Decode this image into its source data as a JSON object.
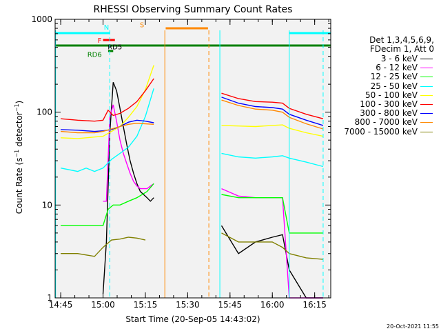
{
  "chart_data": {
    "type": "line",
    "title": "RHESSI Observing Summary Count Rates",
    "xlabel": "Start Time (20-Sep-05 14:43:02)",
    "ylabel": "Count Rate (s^-1 detector^-1)",
    "yscale": "log",
    "xlim": [
      14.717,
      16.345
    ],
    "ylim": [
      1,
      1000
    ],
    "x_ticks": [
      14.75,
      15.0,
      15.25,
      15.5,
      15.75,
      16.0,
      16.25
    ],
    "x_tick_labels": [
      "14:45",
      "15:00",
      "15:15",
      "15:30",
      "15:45",
      "16:00",
      "16:15"
    ],
    "y_ticks": [
      1,
      10,
      100,
      1000
    ],
    "y_tick_labels": [
      "1",
      "10",
      "100",
      "1000"
    ],
    "legend": {
      "header": [
        "Det 1,3,4,5,6,9,",
        "FDecim 1, Att 0"
      ],
      "placement": "right"
    },
    "series": [
      {
        "name": "3 - 6 keV",
        "color": "#000000",
        "x": [
          15.0,
          15.02,
          15.04,
          15.06,
          15.08,
          15.1,
          15.12,
          15.14,
          15.16,
          15.18,
          15.2,
          15.22,
          15.26,
          15.28,
          15.3
        ],
        "values": [
          1.1,
          4,
          60,
          210,
          170,
          110,
          70,
          45,
          30,
          22,
          17,
          14,
          12,
          11,
          12
        ]
      },
      {
        "name": "6 - 12 keV",
        "color": "#ff00ff",
        "x": [
          15.0,
          15.02,
          15.04,
          15.06,
          15.08,
          15.1,
          15.12,
          15.14,
          15.16,
          15.18,
          15.2,
          15.22,
          15.26,
          15.28,
          15.3
        ],
        "values": [
          11,
          11,
          90,
          120,
          80,
          50,
          36,
          28,
          22,
          18,
          16,
          15,
          15,
          16,
          17
        ]
      },
      {
        "name": "12 - 25 keV",
        "color": "#00ff00",
        "x": [
          14.75,
          14.9,
          15.0,
          15.03,
          15.06,
          15.1,
          15.15,
          15.2,
          15.26,
          15.3
        ],
        "values": [
          6,
          6,
          6,
          9,
          10,
          10,
          11,
          12,
          14,
          17
        ]
      },
      {
        "name": "25 - 50 keV",
        "color": "#00ffff",
        "x": [
          14.75,
          14.85,
          14.9,
          14.95,
          15.0,
          15.05,
          15.1,
          15.15,
          15.2,
          15.25,
          15.3
        ],
        "values": [
          25,
          23,
          25,
          23,
          25,
          31,
          36,
          42,
          55,
          90,
          180
        ]
      },
      {
        "name": "50 - 100 keV",
        "color": "#ffff00",
        "x": [
          14.75,
          14.85,
          14.95,
          15.0,
          15.05,
          15.1,
          15.15,
          15.2,
          15.25,
          15.3
        ],
        "values": [
          53,
          52,
          54,
          55,
          62,
          70,
          88,
          115,
          175,
          320
        ]
      },
      {
        "name": "100 - 300 keV",
        "color": "#ff0000",
        "x": [
          14.75,
          14.85,
          14.95,
          15.0,
          15.03,
          15.06,
          15.1,
          15.15,
          15.2,
          15.25,
          15.3
        ],
        "values": [
          85,
          82,
          80,
          82,
          105,
          92,
          97,
          110,
          130,
          170,
          230
        ]
      },
      {
        "name": "300 - 800 keV",
        "color": "#0000ff",
        "x": [
          14.75,
          14.85,
          14.95,
          15.0,
          15.05,
          15.1,
          15.15,
          15.2,
          15.25,
          15.3
        ],
        "values": [
          65,
          64,
          62,
          63,
          65,
          70,
          78,
          82,
          80,
          77
        ]
      },
      {
        "name": "800 - 7000 keV",
        "color": "#ff8800",
        "x": [
          14.75,
          14.85,
          14.95,
          15.0,
          15.05,
          15.1,
          15.15,
          15.2,
          15.25,
          15.3
        ],
        "values": [
          62,
          60,
          60,
          62,
          66,
          70,
          74,
          76,
          75,
          74
        ]
      },
      {
        "name": "7000 - 15000 keV",
        "color": "#808000",
        "x": [
          14.75,
          14.85,
          14.95,
          15.0,
          15.05,
          15.1,
          15.15,
          15.2,
          15.25
        ],
        "values": [
          3,
          3,
          2.8,
          3.5,
          4.2,
          4.3,
          4.5,
          4.4,
          4.2
        ]
      }
    ],
    "series_after_gap": {
      "x": [
        15.7,
        15.8,
        15.9,
        16.0,
        16.06,
        16.1,
        16.2,
        16.3
      ],
      "3 - 6 keV": [
        6,
        3,
        4,
        4.5,
        4.8,
        2,
        1,
        1
      ],
      "6 - 12 keV": [
        15,
        12.5,
        12,
        12,
        12,
        1,
        1,
        1
      ],
      "12 - 25 keV": [
        13,
        12,
        12,
        12,
        12,
        5,
        5,
        5
      ],
      "25 - 50 keV": [
        36,
        33,
        32,
        33,
        34,
        32,
        29,
        26
      ],
      "50 - 100 keV": [
        72,
        71,
        70,
        72,
        73,
        67,
        60,
        55
      ],
      "100 - 300 keV": [
        160,
        140,
        130,
        128,
        125,
        110,
        95,
        85
      ],
      "300 - 800 keV": [
        145,
        125,
        115,
        112,
        108,
        95,
        82,
        72
      ],
      "800 - 7000 keV": [
        135,
        118,
        108,
        105,
        100,
        88,
        75,
        66
      ],
      "7000 - 15000 keV": [
        5,
        4,
        4,
        4,
        3.5,
        3,
        2.7,
        2.6
      ]
    },
    "annotations": [
      {
        "text": "N",
        "color": "#00ffff",
        "x": 15.02,
        "y": 830
      },
      {
        "text": "F",
        "color": "#ff0000",
        "x": 14.98,
        "y": 600
      },
      {
        "text": "RD5",
        "color": "#000000",
        "x": 15.07,
        "y": 510
      },
      {
        "text": "RD6",
        "color": "#008000",
        "x": 14.95,
        "y": 420
      },
      {
        "text": "S",
        "color": "#ff8800",
        "x": 15.23,
        "y": 880
      }
    ],
    "top_bars": [
      {
        "label": "N",
        "color": "#00ffff",
        "x": [
          14.717,
          15.04
        ]
      },
      {
        "label": "N",
        "color": "#00ffff",
        "x": [
          16.1,
          16.345
        ]
      },
      {
        "label": "F",
        "color": "#ff0000",
        "x": [
          15.0,
          15.07
        ]
      },
      {
        "label": "RD5",
        "color": "#000000",
        "x": [
          15.02,
          15.05
        ]
      },
      {
        "label": "RD6",
        "color": "#008000",
        "x": [
          15.03,
          15.06
        ]
      },
      {
        "label": "RD6",
        "color": "#008000",
        "x": [
          14.717,
          16.345
        ]
      },
      {
        "label": "S",
        "color": "#ff8800",
        "x": [
          15.37,
          15.62
        ]
      }
    ],
    "vlines": [
      {
        "x": 15.04,
        "color": "#00ffff",
        "style": "dashed"
      },
      {
        "x": 15.365,
        "color": "#ff8800",
        "style": "solid"
      },
      {
        "x": 15.625,
        "color": "#ff8800",
        "style": "dashed"
      },
      {
        "x": 15.69,
        "color": "#00ffff",
        "style": "solid"
      },
      {
        "x": 16.1,
        "color": "#00ffff",
        "style": "solid"
      },
      {
        "x": 16.3,
        "color": "#00ffff",
        "style": "dashed"
      },
      {
        "x": 14.72,
        "color": "#00ffff",
        "style": "solid"
      }
    ]
  },
  "footer": {
    "timestamp": "20-Oct-2021 11:55"
  }
}
